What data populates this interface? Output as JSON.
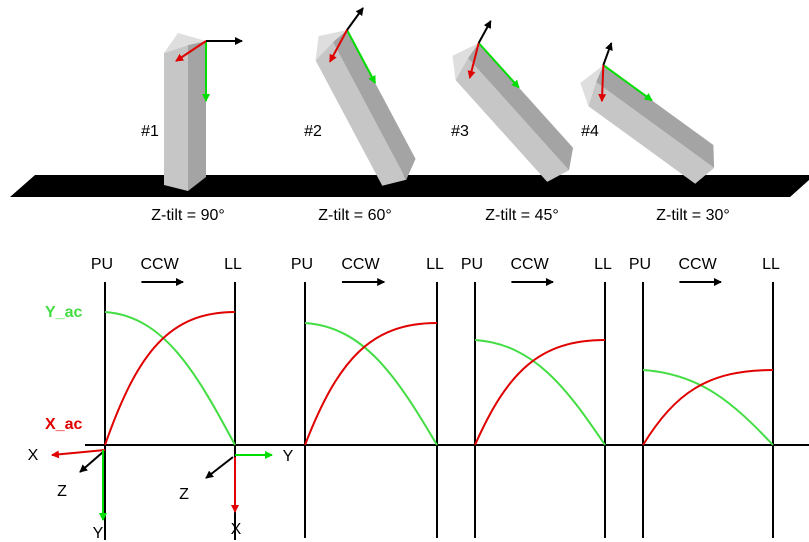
{
  "blocks": [
    {
      "number": "#1",
      "tilt": "Z-tilt = 90°"
    },
    {
      "number": "#2",
      "tilt": "Z-tilt = 60°"
    },
    {
      "number": "#3",
      "tilt": "Z-tilt = 45°"
    },
    {
      "number": "#4",
      "tilt": "Z-tilt = 30°"
    }
  ],
  "panels": [
    {
      "start": "PU",
      "direction": "CCW",
      "end": "LL"
    },
    {
      "start": "PU",
      "direction": "CCW",
      "end": "LL"
    },
    {
      "start": "PU",
      "direction": "CCW",
      "end": "LL"
    },
    {
      "start": "PU",
      "direction": "CCW",
      "end": "LL"
    }
  ],
  "y_curve_label": "Y_ac",
  "x_curve_label": "X_ac",
  "frames": [
    {
      "x": "X",
      "y": "Y",
      "z": "Z"
    },
    {
      "x": "X",
      "y": "Y",
      "z": "Z"
    }
  ]
}
